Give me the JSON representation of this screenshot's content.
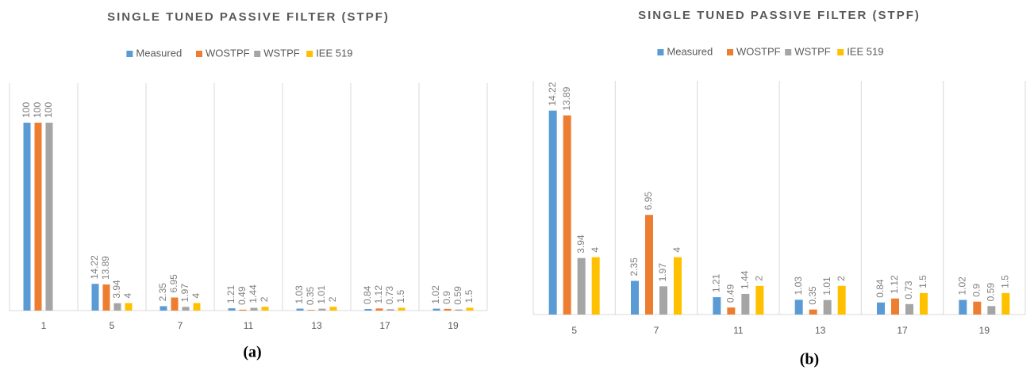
{
  "chart_data": [
    {
      "type": "bar",
      "title": "SINGLE TUNED PASSIVE FILTER (STPF)",
      "caption": "(a)",
      "categories": [
        "1",
        "5",
        "7",
        "11",
        "13",
        "17",
        "19"
      ],
      "series": [
        {
          "name": "Measured",
          "color": "#5b9bd5",
          "values": [
            100,
            14.22,
            2.35,
            1.21,
            1.03,
            0.84,
            1.02
          ]
        },
        {
          "name": "WOSTPF",
          "color": "#ed7d31",
          "values": [
            100,
            13.89,
            6.95,
            0.49,
            0.35,
            1.12,
            0.9
          ]
        },
        {
          "name": "WSTPF",
          "color": "#a5a5a5",
          "values": [
            100,
            3.94,
            1.97,
            1.44,
            1.01,
            0.73,
            0.59
          ]
        },
        {
          "name": "IEE 519",
          "color": "#ffc000",
          "values": [
            null,
            4,
            4,
            2,
            2,
            1.5,
            1.5
          ]
        }
      ],
      "ylim": [
        0,
        121
      ],
      "legend": "top"
    },
    {
      "type": "bar",
      "title": "SINGLE TUNED PASSIVE FILTER (STPF)",
      "caption": "(b)",
      "categories": [
        "5",
        "7",
        "11",
        "13",
        "17",
        "19"
      ],
      "series": [
        {
          "name": "Measured",
          "color": "#5b9bd5",
          "values": [
            14.22,
            2.35,
            1.21,
            1.03,
            0.84,
            1.02
          ]
        },
        {
          "name": "WOSTPF",
          "color": "#ed7d31",
          "values": [
            13.89,
            6.95,
            0.49,
            0.35,
            1.12,
            0.9
          ]
        },
        {
          "name": "WSTPF",
          "color": "#a5a5a5",
          "values": [
            3.94,
            1.97,
            1.44,
            1.01,
            0.73,
            0.59
          ]
        },
        {
          "name": "IEE 519",
          "color": "#ffc000",
          "values": [
            4,
            4,
            2,
            2,
            1.5,
            1.5
          ]
        }
      ],
      "ylim": [
        0,
        16.3
      ],
      "legend": "top"
    }
  ]
}
